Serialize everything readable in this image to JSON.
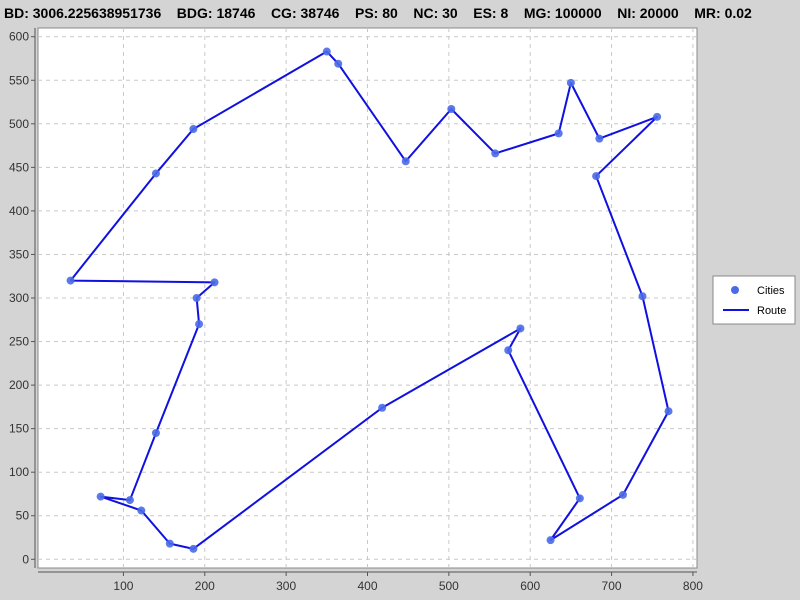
{
  "header": {
    "title": "BD: 3006.225638951736    BDG: 18746    CG: 38746    PS: 80    NC: 30    ES: 8    MG: 100000    NI: 20000    MR: 0.02"
  },
  "colors": {
    "background": "#d4d4d4",
    "plot_background": "#ffffff",
    "grid": "#c8c8c8",
    "route": "#1010e0",
    "city": "#4a6ae8"
  },
  "chart_data": {
    "type": "line",
    "xlim": [
      -5,
      805
    ],
    "ylim": [
      -10,
      610
    ],
    "x_ticks": [
      100,
      200,
      300,
      400,
      500,
      600,
      700,
      800
    ],
    "y_ticks": [
      0,
      50,
      100,
      150,
      200,
      250,
      300,
      350,
      400,
      450,
      500,
      550,
      600
    ],
    "grid": true,
    "legend_position": "right",
    "legend": [
      {
        "name": "Cities",
        "marker": "circle"
      },
      {
        "name": "Route",
        "marker": "line"
      }
    ],
    "series": [
      {
        "name": "Route",
        "points": [
          [
            35,
            320
          ],
          [
            212,
            318
          ],
          [
            190,
            300
          ],
          [
            193,
            270
          ],
          [
            140,
            145
          ],
          [
            108,
            68
          ],
          [
            72,
            72
          ],
          [
            122,
            56
          ],
          [
            157,
            18
          ],
          [
            186,
            12
          ],
          [
            418,
            174
          ],
          [
            588,
            265
          ],
          [
            573,
            240
          ],
          [
            661,
            70
          ],
          [
            625,
            22
          ],
          [
            714,
            74
          ],
          [
            770,
            170
          ],
          [
            738,
            302
          ],
          [
            681,
            440
          ],
          [
            756,
            508
          ],
          [
            685,
            483
          ],
          [
            650,
            547
          ],
          [
            635,
            489
          ],
          [
            557,
            466
          ],
          [
            503,
            517
          ],
          [
            447,
            457
          ],
          [
            364,
            569
          ],
          [
            350,
            583
          ],
          [
            186,
            494
          ],
          [
            140,
            443
          ],
          [
            35,
            320
          ]
        ]
      }
    ]
  }
}
